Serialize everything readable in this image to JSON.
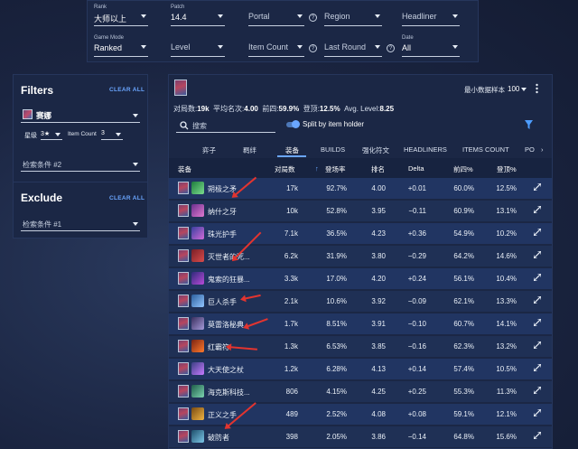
{
  "filters_top": {
    "rank": {
      "label": "Rank",
      "value": "大师以上"
    },
    "patch": {
      "label": "Patch",
      "value": "14.4"
    },
    "portal": {
      "placeholder": "Portal"
    },
    "region": {
      "placeholder": "Region"
    },
    "headliner": {
      "placeholder": "Headliner"
    },
    "game_mode": {
      "label": "Game Mode",
      "value": "Ranked"
    },
    "level": {
      "placeholder": "Level"
    },
    "item_count": {
      "placeholder": "Item Count"
    },
    "last_round": {
      "placeholder": "Last Round"
    },
    "date": {
      "label": "Date",
      "value": "All"
    }
  },
  "filters_panel": {
    "title": "Filters",
    "clear_all": "CLEAR ALL",
    "champion": "赛娜",
    "star_label": "星级",
    "star_value": "3★",
    "item_count_label": "Item Count",
    "item_count_value": "3",
    "search_placeholder": "检索条件 #2"
  },
  "exclude_panel": {
    "title": "Exclude",
    "clear_all": "CLEAR ALL",
    "search_placeholder": "检索条件 #1"
  },
  "main": {
    "sample_label": "最小数据样本",
    "sample_value": "100",
    "stats": {
      "games_label": "对局数:",
      "games_value": "19k",
      "avg_label": "平均名次:",
      "avg_value": "4.00",
      "top4_label": "前四:",
      "top4_value": "59.9%",
      "win_label": "登顶:",
      "win_value": "12.5%",
      "level_label": "Avg. Level:",
      "level_value": "8.25"
    },
    "search_placeholder": "搜索",
    "split_label": "Split by item holder",
    "tabs": [
      "弈子",
      "羁绊",
      "装备",
      "BUILDS",
      "强化符文",
      "HEADLINERS",
      "ITEMS COUNT",
      "PO"
    ],
    "columns": [
      "装备",
      "对局数",
      "登场率",
      "排名",
      "Delta",
      "前四%",
      "登顶%"
    ]
  },
  "rows": [
    {
      "name": "朔极之矛",
      "games": "17k",
      "rate": "92.7%",
      "rank": "4.00",
      "delta": "+0.01",
      "top4": "60.0%",
      "win": "12.5%"
    },
    {
      "name": "纳什之牙",
      "games": "10k",
      "rate": "52.8%",
      "rank": "3.95",
      "delta": "−0.11",
      "top4": "60.9%",
      "win": "13.1%"
    },
    {
      "name": "珠光护手",
      "games": "7.1k",
      "rate": "36.5%",
      "rank": "4.23",
      "delta": "+0.36",
      "top4": "54.9%",
      "win": "10.2%"
    },
    {
      "name": "灭世者的死...",
      "games": "6.2k",
      "rate": "31.9%",
      "rank": "3.80",
      "delta": "−0.29",
      "top4": "64.2%",
      "win": "14.6%"
    },
    {
      "name": "鬼索的狂暴...",
      "games": "3.3k",
      "rate": "17.0%",
      "rank": "4.20",
      "delta": "+0.24",
      "top4": "56.1%",
      "win": "10.4%"
    },
    {
      "name": "巨人杀手",
      "games": "2.1k",
      "rate": "10.6%",
      "rank": "3.92",
      "delta": "−0.09",
      "top4": "62.1%",
      "win": "13.3%"
    },
    {
      "name": "莫雷洛秘典",
      "games": "1.7k",
      "rate": "8.51%",
      "rank": "3.91",
      "delta": "−0.10",
      "top4": "60.7%",
      "win": "14.1%"
    },
    {
      "name": "红霸符",
      "games": "1.3k",
      "rate": "6.53%",
      "rank": "3.85",
      "delta": "−0.16",
      "top4": "62.3%",
      "win": "13.2%"
    },
    {
      "name": "大天使之杖",
      "games": "1.2k",
      "rate": "6.28%",
      "rank": "4.13",
      "delta": "+0.14",
      "top4": "57.4%",
      "win": "10.5%"
    },
    {
      "name": "海克斯科技...",
      "games": "806",
      "rate": "4.15%",
      "rank": "4.25",
      "delta": "+0.25",
      "top4": "55.3%",
      "win": "11.3%"
    },
    {
      "name": "正义之手",
      "games": "489",
      "rate": "2.52%",
      "rank": "4.08",
      "delta": "+0.08",
      "top4": "59.1%",
      "win": "12.1%"
    },
    {
      "name": "破防者",
      "games": "398",
      "rate": "2.05%",
      "rank": "3.86",
      "delta": "−0.14",
      "top4": "64.8%",
      "win": "15.6%"
    }
  ],
  "colors": {
    "accent": "#6aa6ff",
    "panel": "#1b2745",
    "annotation_arrow": "#e3342f"
  }
}
